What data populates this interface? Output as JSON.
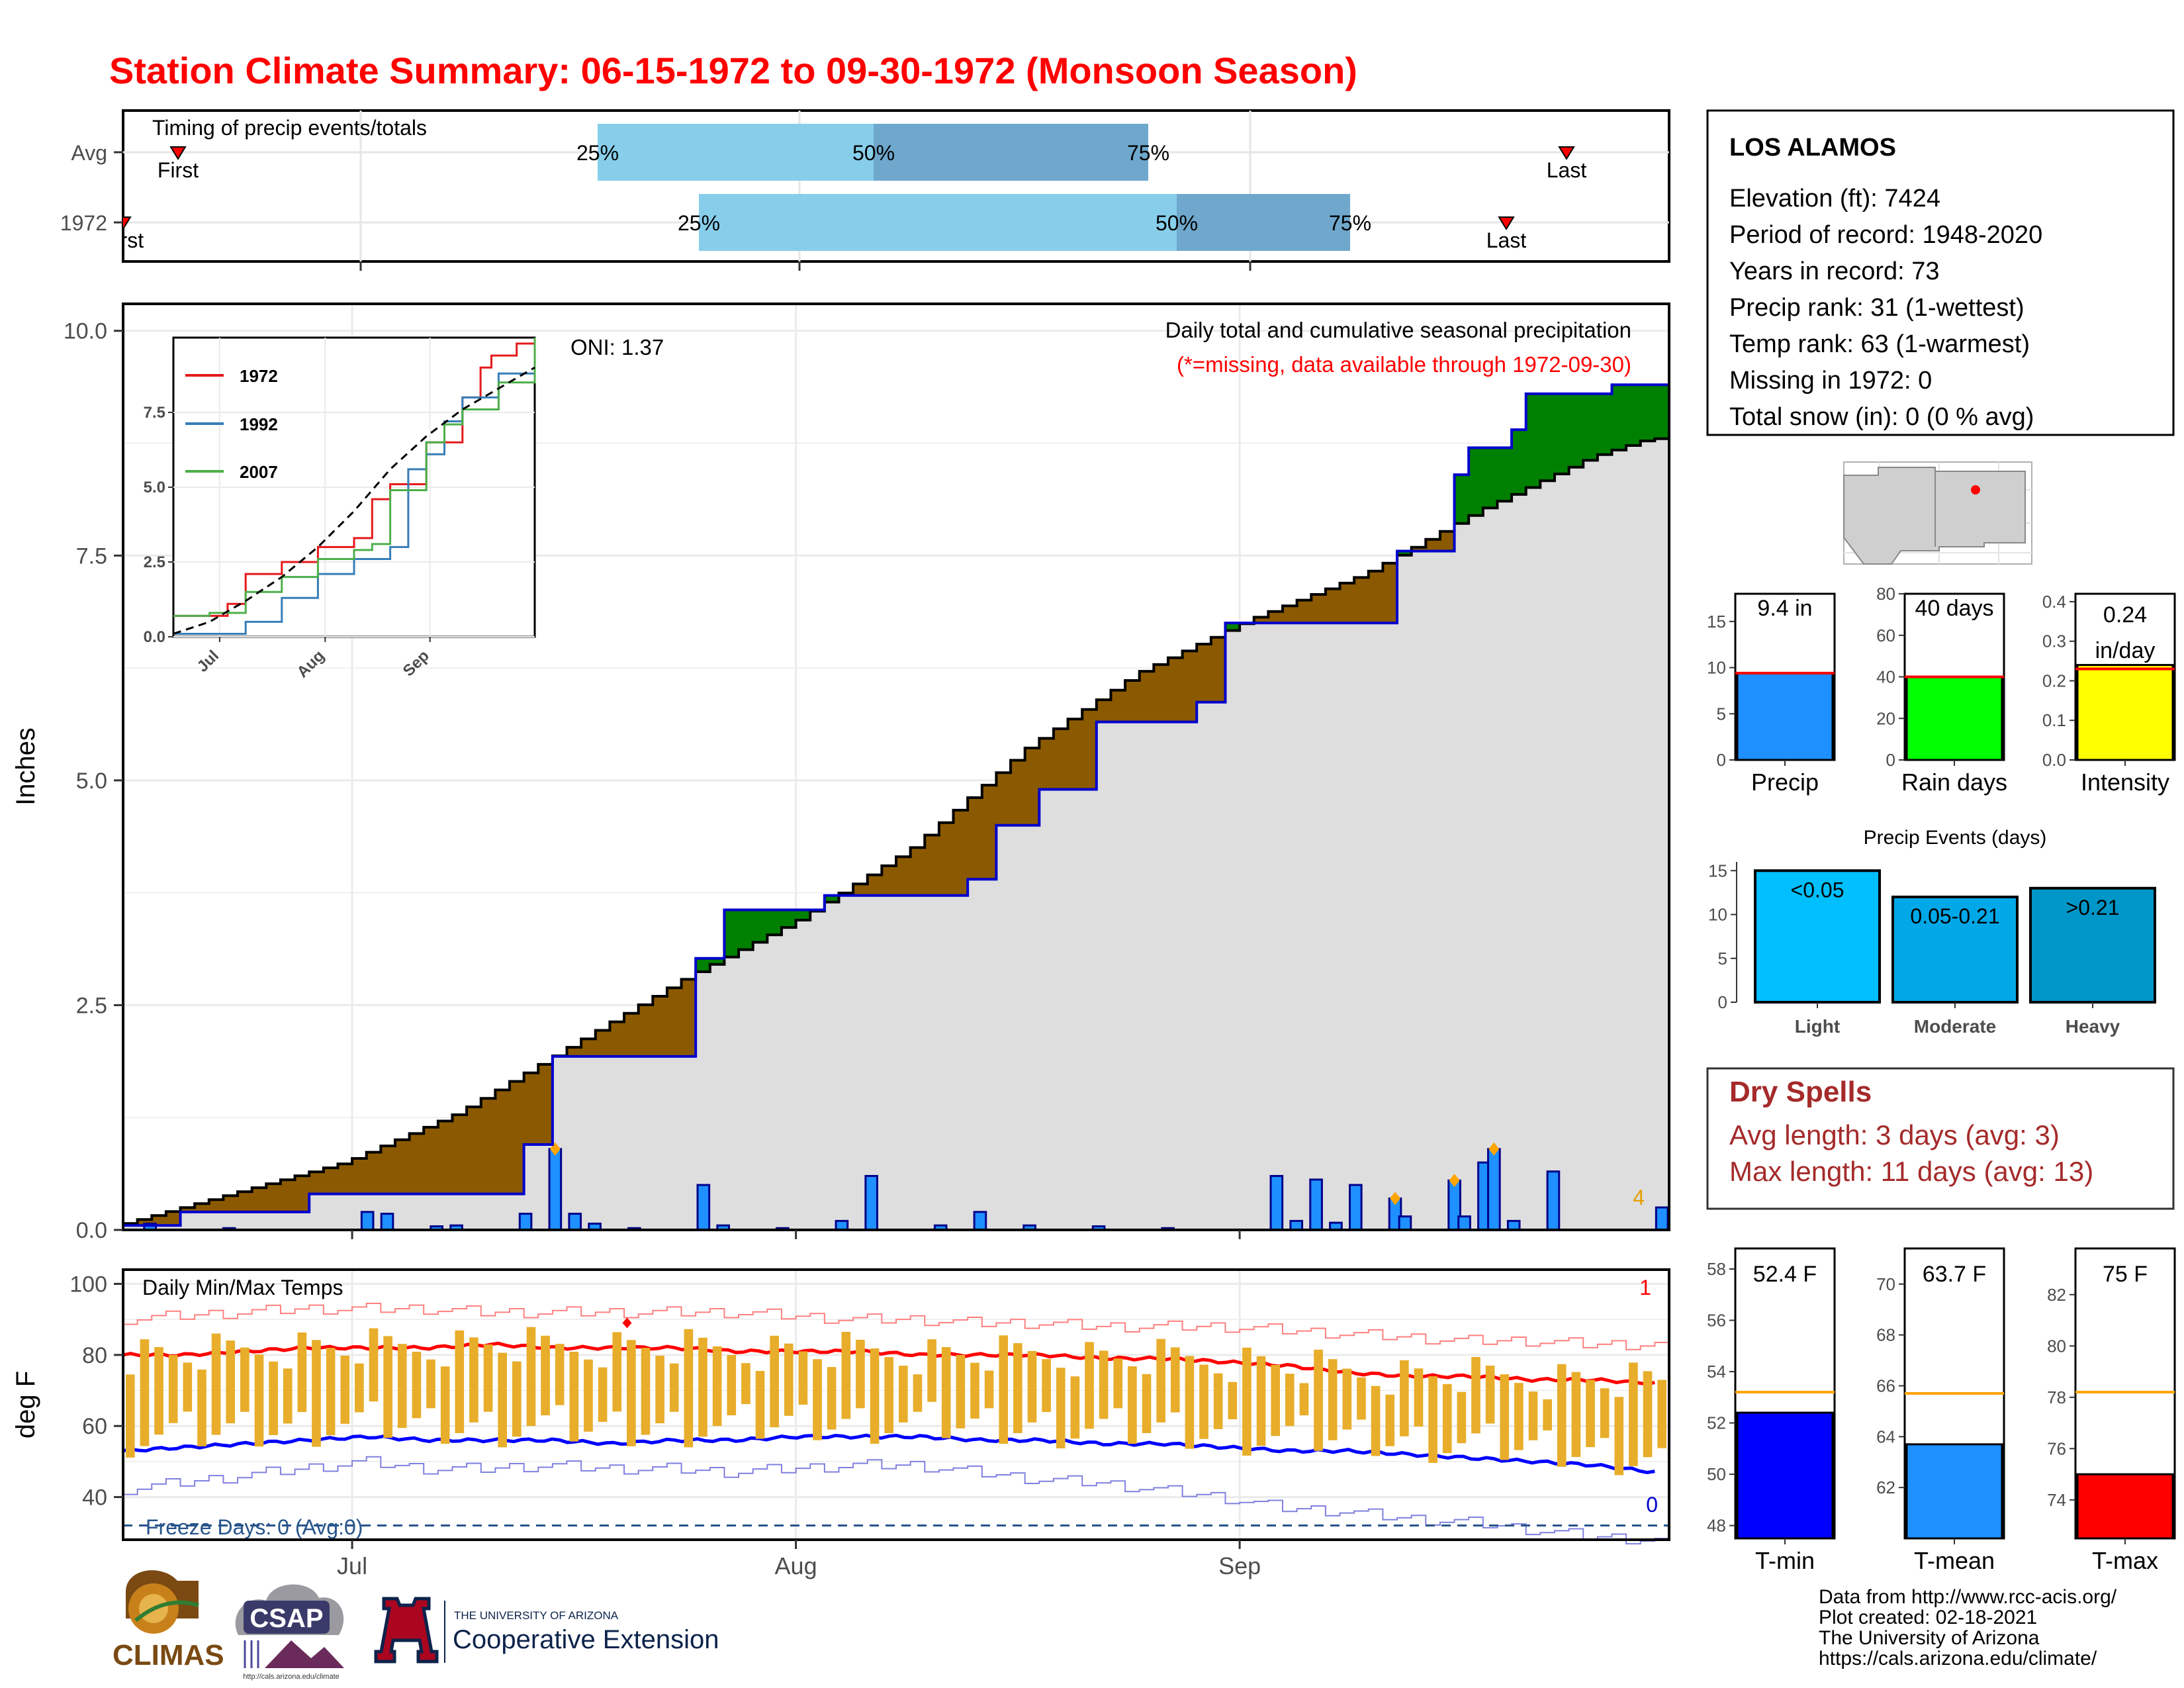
{
  "title": "Station Climate Summary: 06-15-1972 to 09-30-1972 (Monsoon Season)",
  "colors": {
    "title_red": "#ff0000",
    "brown_deficit": "#8b5a00",
    "green_surplus": "#008000",
    "bar_blue": "#1e90ff",
    "cum_line_blue": "#0000cd",
    "light_blue": "#87ceeb",
    "mid_blue": "#6fa8cc",
    "temp_bar": "#e8ad2a",
    "dry_spell_red": "#a52a2a"
  },
  "timing": {
    "label": "Timing of precip events/totals",
    "rows": [
      {
        "name": "Avg",
        "first": "First",
        "last": "Last",
        "p25": "25%",
        "p50": "50%",
        "p75": "75%"
      },
      {
        "name": "1972",
        "first": "First",
        "last": "Last",
        "p25": "25%",
        "p50": "50%",
        "p75": "75%"
      }
    ]
  },
  "main": {
    "ylabel": "Inches",
    "yticks": [
      "0.0",
      "2.5",
      "5.0",
      "7.5",
      "10.0"
    ],
    "oni": "ONI: 1.37",
    "note1": "Daily total and cumulative seasonal precipitation",
    "note2": "(*=missing, data available through 1972-09-30)",
    "corner_count": "4",
    "inset": {
      "legend": [
        "1972",
        "1992",
        "2007"
      ],
      "yticks": [
        "0.0",
        "2.5",
        "5.0",
        "7.5"
      ],
      "xticks": [
        "Jul",
        "Aug",
        "Sep"
      ]
    }
  },
  "temps": {
    "label": "Daily Min/Max Temps",
    "ylabel": "deg F",
    "yticks": [
      "40",
      "60",
      "80",
      "100"
    ],
    "freeze": "Freeze Days: 0 (Avg:0)",
    "count_high": "1",
    "count_low": "0",
    "xticks": [
      "Jul",
      "Aug",
      "Sep"
    ]
  },
  "chart_data": [
    {
      "type": "area",
      "title": "Daily total and cumulative seasonal precipitation",
      "ylabel": "Inches",
      "ylim": [
        0,
        10.3
      ],
      "x_start": "1972-06-15",
      "x_end": "1972-09-30",
      "series": [
        {
          "name": "1972",
          "type": "line",
          "day_index": [
            0,
            5,
            16,
            35,
            38,
            51,
            53,
            62,
            75,
            77,
            81,
            86,
            95,
            97,
            112,
            117,
            118,
            122,
            124,
            131,
            135
          ],
          "values": [
            0.05,
            0.2,
            0.4,
            0.95,
            1.93,
            3.02,
            3.56,
            3.72,
            3.9,
            4.5,
            4.9,
            5.65,
            5.87,
            6.75,
            7.55,
            8.4,
            8.7,
            8.9,
            9.3,
            9.4,
            9.4
          ]
        },
        {
          "name": "avg",
          "type": "line",
          "day_index": [
            0,
            10,
            20,
            30,
            40,
            50,
            60,
            70,
            80,
            90,
            100,
            110,
            120,
            130,
            135
          ],
          "values": [
            0.05,
            0.4,
            0.75,
            1.3,
            2.05,
            2.8,
            3.45,
            4.25,
            5.35,
            6.2,
            6.8,
            7.3,
            8.0,
            8.6,
            8.8
          ]
        },
        {
          "name": "daily",
          "type": "bar",
          "bars": [
            [
              2,
              0.07
            ],
            [
              10,
              0.02
            ],
            [
              24,
              0.2
            ],
            [
              26,
              0.18
            ],
            [
              31,
              0.04
            ],
            [
              33,
              0.05
            ],
            [
              40,
              0.18
            ],
            [
              43,
              0.9
            ],
            [
              45,
              0.18
            ],
            [
              47,
              0.07
            ],
            [
              51,
              0.02
            ],
            [
              58,
              0.5
            ],
            [
              60,
              0.05
            ],
            [
              66,
              0.02
            ],
            [
              72,
              0.1
            ],
            [
              75,
              0.6
            ],
            [
              82,
              0.05
            ],
            [
              86,
              0.2
            ],
            [
              91,
              0.05
            ],
            [
              98,
              0.04
            ],
            [
              105,
              0.02
            ],
            [
              116,
              0.6
            ],
            [
              118,
              0.1
            ],
            [
              120,
              0.56
            ],
            [
              122,
              0.08
            ],
            [
              124,
              0.5
            ],
            [
              128,
              0.35
            ],
            [
              129,
              0.15
            ],
            [
              134,
              0.55
            ],
            [
              135,
              0.15
            ],
            [
              137,
              0.75
            ],
            [
              138,
              0.9
            ],
            [
              140,
              0.1
            ],
            [
              144,
              0.65
            ],
            [
              155,
              0.25
            ]
          ],
          "markers": [
            43,
            128,
            134,
            138
          ]
        }
      ]
    },
    {
      "type": "line",
      "title": "",
      "xticks": [
        "Jul",
        "Aug",
        "Sep"
      ],
      "ylim": [
        0,
        10
      ],
      "series": [
        {
          "name": "1972",
          "color": "#e41a1c",
          "x": [
            0,
            15,
            20,
            30,
            40,
            50,
            55,
            60,
            70,
            80,
            85,
            88,
            95,
            100
          ],
          "values": [
            0.7,
            1.1,
            2.1,
            2.5,
            3.0,
            3.3,
            4.6,
            5.1,
            6.5,
            8.0,
            9.0,
            9.4,
            9.8,
            10.0
          ]
        },
        {
          "name": "1992",
          "color": "#377eb8",
          "x": [
            0,
            20,
            30,
            40,
            50,
            60,
            65,
            70,
            75,
            80,
            90,
            100
          ],
          "values": [
            0.1,
            0.5,
            1.3,
            2.1,
            2.6,
            3.0,
            5.6,
            6.1,
            7.2,
            8.0,
            8.8,
            9.3
          ]
        },
        {
          "name": "2007",
          "color": "#4daf4a",
          "x": [
            0,
            10,
            20,
            30,
            40,
            50,
            55,
            60,
            70,
            75,
            80,
            90,
            100
          ],
          "values": [
            0.7,
            0.8,
            1.5,
            2.0,
            2.6,
            2.9,
            3.1,
            4.9,
            6.5,
            7.1,
            7.6,
            8.5,
            10.0
          ]
        },
        {
          "name": "avg",
          "color": "#000000",
          "x": [
            0,
            10,
            20,
            30,
            40,
            50,
            60,
            70,
            80,
            90,
            100
          ],
          "values": [
            0.1,
            0.5,
            1.2,
            2.0,
            3.0,
            4.2,
            5.6,
            6.7,
            7.6,
            8.3,
            9.0
          ]
        }
      ]
    },
    {
      "type": "bar",
      "title": "Daily Min/Max Temps",
      "ylabel": "deg F",
      "ylim": [
        28,
        104
      ],
      "normal_max": [
        80,
        80,
        81,
        82,
        82,
        82,
        83,
        82,
        82,
        82,
        81,
        81,
        81,
        80,
        80,
        80,
        79,
        79,
        78,
        77,
        75,
        74,
        74,
        73,
        73,
        72
      ],
      "normal_min": [
        53,
        54,
        55,
        56,
        57,
        56,
        56,
        56,
        55,
        56,
        56,
        57,
        57,
        57,
        56,
        56,
        55,
        55,
        54,
        53,
        53,
        52,
        51,
        50,
        49,
        47
      ],
      "record_max": [
        90,
        91,
        92,
        93,
        93,
        93,
        92,
        92,
        92,
        92,
        92,
        91,
        90,
        90,
        89,
        89,
        88,
        88,
        88,
        87,
        86,
        85,
        84,
        84,
        83,
        83
      ],
      "record_min": [
        42,
        44,
        46,
        48,
        50,
        48,
        48,
        49,
        48,
        48,
        47,
        48,
        49,
        49,
        47,
        45,
        44,
        42,
        40,
        37,
        36,
        34,
        33,
        31,
        29,
        28
      ],
      "record_max_marker": [
        51,
        89
      ]
    },
    {
      "type": "bar",
      "title": "",
      "categories": [
        "Precip",
        "Rain days",
        "Intensity"
      ],
      "values": [
        9.4,
        40,
        0.24
      ],
      "averages": [
        9.4,
        40,
        0.23
      ],
      "labels": [
        "9.4 in",
        "40 days",
        "0.24 in/day"
      ],
      "ylims": [
        [
          0,
          18
        ],
        [
          0,
          80
        ],
        [
          0,
          0.42
        ]
      ],
      "yticks": [
        [
          "0",
          "5",
          "10",
          "15"
        ],
        [
          "0",
          "20",
          "40",
          "60",
          "80"
        ],
        [
          "0.0",
          "0.1",
          "0.2",
          "0.3",
          "0.4"
        ]
      ],
      "colors": [
        "#1e90ff",
        "#00ff00",
        "#ffff00"
      ]
    },
    {
      "type": "bar",
      "title": "Precip Events (days)",
      "categories": [
        "Light",
        "Moderate",
        "Heavy"
      ],
      "values": [
        15,
        12,
        13
      ],
      "labels": [
        "<0.05",
        "0.05-0.21",
        ">0.21"
      ],
      "ylim": [
        0,
        16
      ],
      "yticks": [
        "0",
        "5",
        "10",
        "15"
      ],
      "colors": [
        "#00bfff",
        "#00a8e8",
        "#0096c8"
      ]
    },
    {
      "type": "bar",
      "title": "",
      "categories": [
        "T-min",
        "T-mean",
        "T-max"
      ],
      "values": [
        52.4,
        63.7,
        75
      ],
      "averages": [
        53.2,
        65.7,
        78.2
      ],
      "labels": [
        "52.4 F",
        "63.7 F",
        "75 F"
      ],
      "ylims": [
        [
          47.5,
          58.8
        ],
        [
          60.0,
          71.4
        ],
        [
          72.5,
          83.8
        ]
      ],
      "yticks": [
        [
          "48",
          "50",
          "52",
          "54",
          "56",
          "58"
        ],
        [
          "62",
          "64",
          "66",
          "68",
          "70"
        ],
        [
          "74",
          "76",
          "78",
          "80",
          "82"
        ]
      ],
      "colors": [
        "#0000ff",
        "#1e90ff",
        "#ff0000"
      ]
    }
  ],
  "station": {
    "name": "LOS ALAMOS",
    "lines": [
      "Elevation (ft): 7424",
      "Period of record: 1948-2020",
      "Years in record: 73",
      "Precip rank: 31 (1-wettest)",
      "Temp rank: 63 (1-warmest)",
      "Missing in 1972: 0",
      "Total snow (in): 0 (0 % avg)"
    ]
  },
  "dry_spells": {
    "title": "Dry Spells",
    "avg": "Avg length: 3 days (avg: 3)",
    "max": "Max length: 11 days (avg: 13)"
  },
  "footer": {
    "lines": [
      "Data from http://www.rcc-acis.org/",
      "Plot created: 02-18-2021",
      "The University of Arizona",
      "https://cals.arizona.edu/climate/"
    ],
    "climas": "CLIMAS",
    "csap": "CSAP",
    "csap_url": "http://cals.arizona.edu/climate",
    "ua_small": "THE UNIVERSITY OF ARIZONA",
    "ua_big": "Cooperative Extension"
  }
}
